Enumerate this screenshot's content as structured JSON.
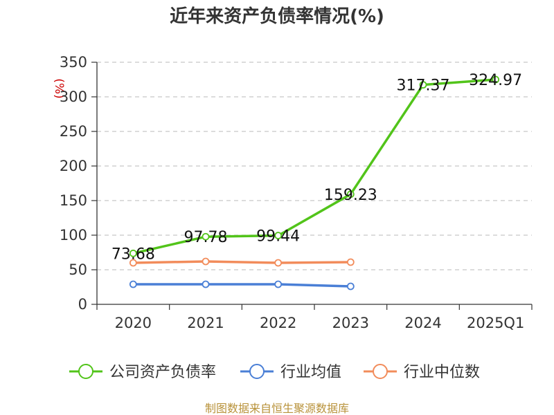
{
  "chart_data": {
    "type": "line",
    "title": "近年来资产负债率情况(%)",
    "ylabel": "(%)",
    "xlabel": "",
    "categories": [
      "2020",
      "2021",
      "2022",
      "2023",
      "2024",
      "2025Q1"
    ],
    "ylim": [
      0,
      350
    ],
    "yticks": [
      0,
      50,
      100,
      150,
      200,
      250,
      300,
      350
    ],
    "grid": true,
    "legend_position": "bottom",
    "series": [
      {
        "name": "公司资产负债率",
        "color": "#52c41a",
        "values": [
          73.68,
          97.78,
          99.44,
          159.23,
          317.37,
          324.97
        ],
        "labels": [
          "73.68",
          "97.78",
          "99.44",
          "159.23",
          "317.37",
          "324.97"
        ]
      },
      {
        "name": "行业均值",
        "color": "#4a7fd6",
        "values": [
          29,
          29,
          29,
          26,
          null,
          null
        ]
      },
      {
        "name": "行业中位数",
        "color": "#f28c5b",
        "values": [
          60,
          62,
          60,
          61,
          null,
          null
        ]
      }
    ],
    "source": "制图数据来自恒生聚源数据库"
  }
}
